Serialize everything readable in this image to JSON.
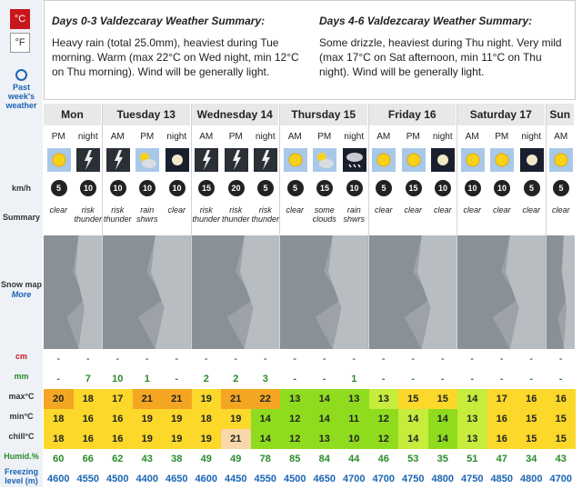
{
  "units": {
    "c": "°C",
    "f": "°F"
  },
  "side": {
    "past1": "Past",
    "past2": "week's",
    "past3": "weather",
    "kmh": "km/h",
    "summary": "Summary",
    "snow1": "Snow map",
    "snow2": "More",
    "cm": "cm",
    "mm": "mm",
    "max": "max°C",
    "min": "min°C",
    "chill": "chill°C",
    "humid": "Humid.%",
    "frz1": "Freezing",
    "frz2": "level (m)"
  },
  "summary": {
    "t1": "Days 0-3 Valdezcaray Weather Summary:",
    "b1": "Heavy rain (total 25.0mm), heaviest during Tue morning. Warm (max 22°C on Wed night, min 12°C on Thu morning). Wind will be generally light.",
    "t2": "Days 4-6 Valdezcaray Weather Summary:",
    "b2": "Some drizzle, heaviest during Thu night. Very mild (max 17°C on Sat afternoon, min 11°C on Thu night). Wind will be generally light."
  },
  "days": [
    "Mon",
    "Tuesday 13",
    "Wednesday 14",
    "Thursday 15",
    "Friday 16",
    "Saturday 17",
    "Sun"
  ],
  "periods": [
    "PM",
    "night",
    "AM",
    "PM",
    "night",
    "AM",
    "PM",
    "night",
    "AM",
    "PM",
    "night",
    "AM",
    "PM",
    "night",
    "AM",
    "PM",
    "night",
    "AM"
  ],
  "icons": [
    "sun-icon",
    "lightning-icon",
    "lightning-icon",
    "cloud-sun-icon",
    "moon-icon",
    "lightning-icon",
    "lightning-icon",
    "lightning-icon",
    "sun-icon",
    "cloud-sun-icon",
    "snow-cloud-icon",
    "sun-icon",
    "sun-icon",
    "moon-icon",
    "sun-icon",
    "sun-icon",
    "moon-icon",
    "sun-icon"
  ],
  "wind": [
    "5",
    "10",
    "10",
    "10",
    "10",
    "15",
    "20",
    "5",
    "5",
    "15",
    "10",
    "5",
    "15",
    "10",
    "10",
    "10",
    "5",
    "5"
  ],
  "summ": [
    "clear",
    "risk thunder",
    "risk thunder",
    "rain shwrs",
    "clear",
    "risk thunder",
    "risk thunder",
    "risk thunder",
    "clear",
    "some clouds",
    "rain shwrs",
    "clear",
    "clear",
    "clear",
    "clear",
    "clear",
    "clear",
    "clear"
  ],
  "snow": [
    "-",
    "-",
    "-",
    "-",
    "-",
    "-",
    "-",
    "-",
    "-",
    "-",
    "-",
    "-",
    "-",
    "-",
    "-",
    "-",
    "-",
    "-"
  ],
  "rain": [
    "-",
    "7",
    "10",
    "1",
    "-",
    "2",
    "2",
    "3",
    "-",
    "-",
    "1",
    "-",
    "-",
    "-",
    "-",
    "-",
    "-",
    "-"
  ],
  "max": [
    "20",
    "18",
    "17",
    "21",
    "21",
    "19",
    "21",
    "22",
    "13",
    "14",
    "13",
    "13",
    "15",
    "15",
    "14",
    "17",
    "16",
    "16"
  ],
  "min": [
    "18",
    "16",
    "16",
    "19",
    "19",
    "18",
    "19",
    "14",
    "12",
    "14",
    "11",
    "12",
    "14",
    "14",
    "13",
    "16",
    "15",
    "15"
  ],
  "chill": [
    "18",
    "16",
    "16",
    "19",
    "19",
    "19",
    "21",
    "14",
    "12",
    "13",
    "10",
    "12",
    "14",
    "14",
    "13",
    "16",
    "15",
    "15"
  ],
  "humid": [
    "60",
    "66",
    "62",
    "43",
    "38",
    "49",
    "49",
    "78",
    "85",
    "84",
    "44",
    "46",
    "53",
    "35",
    "51",
    "47",
    "34",
    "43"
  ],
  "frz": [
    "4600",
    "4550",
    "4500",
    "4400",
    "4650",
    "4600",
    "4450",
    "4550",
    "4500",
    "4650",
    "4700",
    "4700",
    "4750",
    "4800",
    "4750",
    "4850",
    "4800",
    "4700"
  ],
  "colors": {
    "max": [
      "#f4a623",
      "#fbd82a",
      "#fbd82a",
      "#f4a623",
      "#f4a623",
      "#fbd82a",
      "#f4a623",
      "#f4a623",
      "#8fdc1e",
      "#8fdc1e",
      "#8fdc1e",
      "#c6ec3c",
      "#fbd82a",
      "#fbd82a",
      "#c6ec3c",
      "#fbd82a",
      "#fbd82a",
      "#fbd82a"
    ],
    "min": [
      "#fbd82a",
      "#fbd82a",
      "#fbd82a",
      "#fbd82a",
      "#fbd82a",
      "#fbd82a",
      "#fbd82a",
      "#8fdc1e",
      "#8fdc1e",
      "#8fdc1e",
      "#8fdc1e",
      "#8fdc1e",
      "#c6ec3c",
      "#8fdc1e",
      "#c6ec3c",
      "#fbd82a",
      "#fbd82a",
      "#fbd82a"
    ],
    "chill": [
      "#fbd82a",
      "#fbd82a",
      "#fbd82a",
      "#fbd82a",
      "#fbd82a",
      "#fbd82a",
      "#f9d7a8",
      "#8fdc1e",
      "#8fdc1e",
      "#8fdc1e",
      "#8fdc1e",
      "#8fdc1e",
      "#c6ec3c",
      "#8fdc1e",
      "#c6ec3c",
      "#fbd82a",
      "#fbd82a",
      "#fbd82a"
    ]
  }
}
